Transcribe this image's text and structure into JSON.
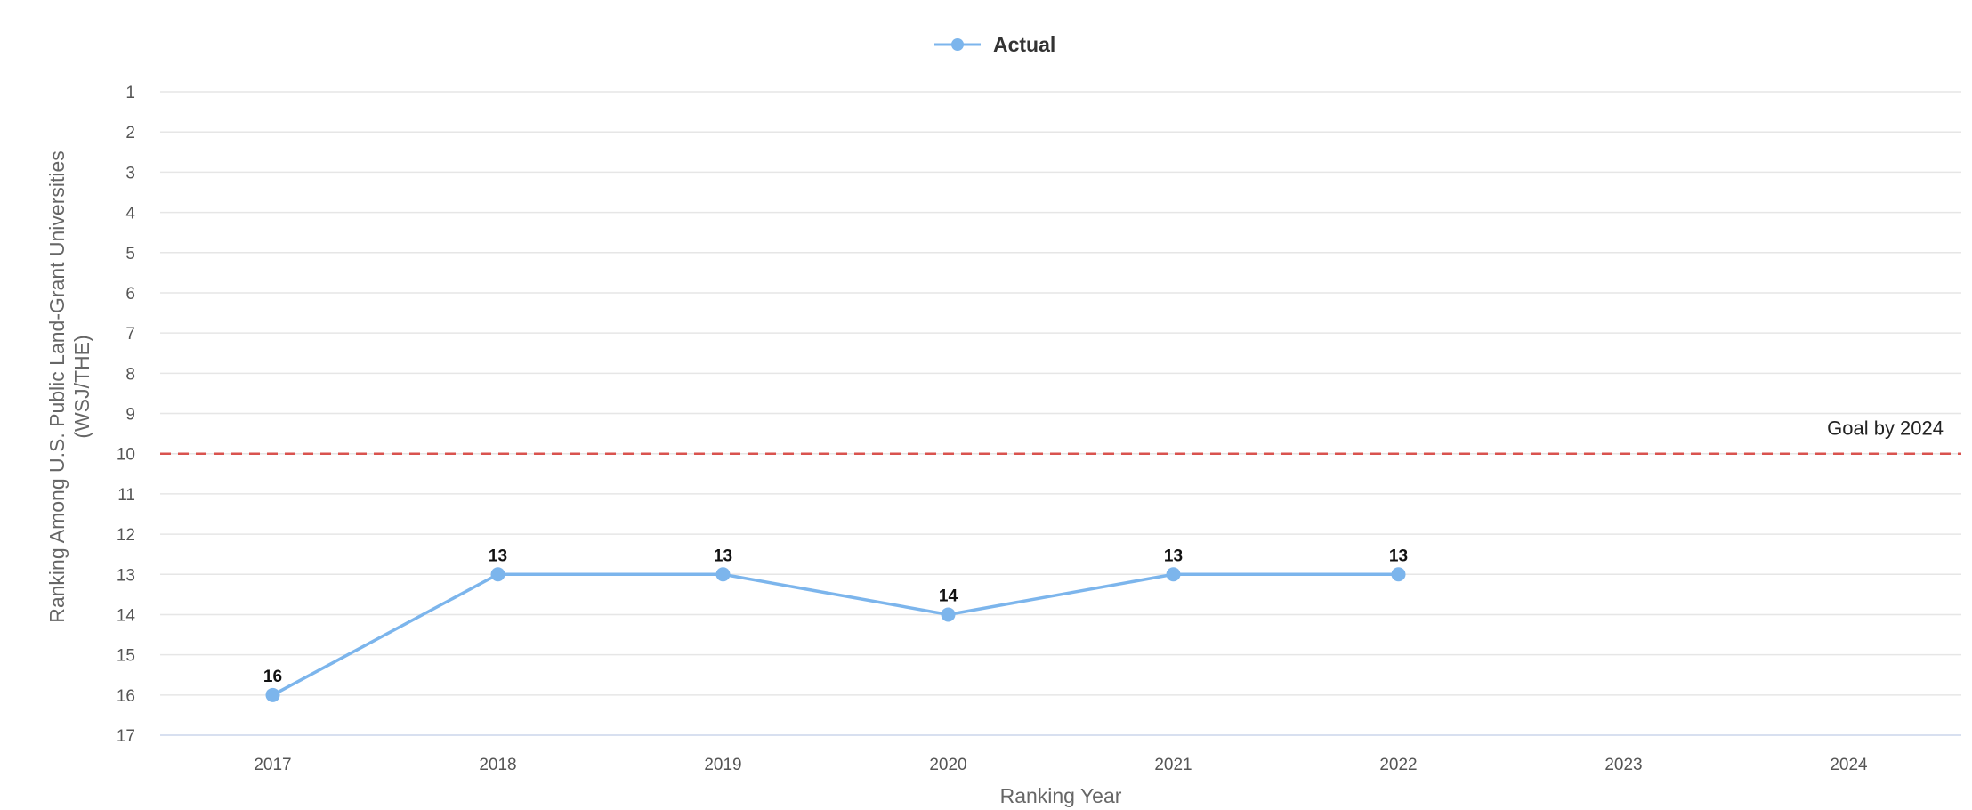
{
  "chart_data": {
    "type": "line",
    "xlabel": "Ranking Year",
    "ylabel_lines": [
      "Ranking Among U.S. Public Land-Grant Universities",
      "(WSJ/THE)"
    ],
    "categories": [
      "2017",
      "2018",
      "2019",
      "2020",
      "2021",
      "2022",
      "2023",
      "2024"
    ],
    "y_ticks": [
      "1",
      "2",
      "3",
      "4",
      "5",
      "6",
      "7",
      "8",
      "9",
      "10",
      "11",
      "12",
      "13",
      "14",
      "15",
      "16",
      "17"
    ],
    "ylim": [
      1,
      17
    ],
    "y_reversed": true,
    "grid": true,
    "legend_position": "top-center",
    "series": [
      {
        "name": "Actual",
        "color": "#7cb5ec",
        "values": [
          16,
          13,
          13,
          14,
          13,
          13,
          null,
          null
        ],
        "data_labels": [
          "16",
          "13",
          "13",
          "14",
          "13",
          "13"
        ]
      }
    ],
    "goal_line": {
      "value": 10,
      "label": "Goal by 2024",
      "color": "#d9534f"
    }
  }
}
